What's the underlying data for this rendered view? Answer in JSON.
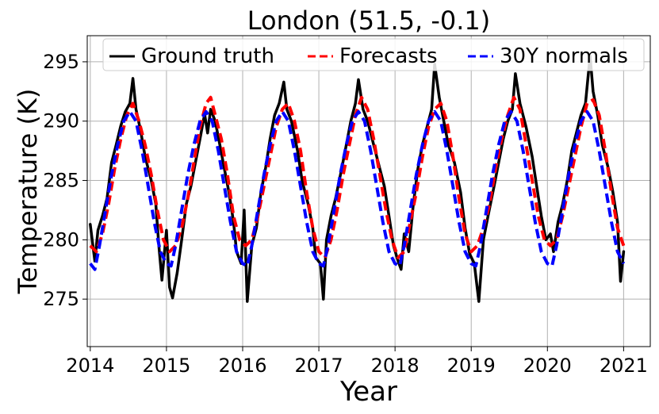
{
  "chart_data": {
    "type": "line",
    "title": "London (51.5, -0.1)",
    "xlabel": "Year",
    "ylabel": "Temperature (K)",
    "xlim": [
      2013.96,
      2021.35
    ],
    "ylim": [
      271.0,
      297.2
    ],
    "xticks": [
      2014,
      2015,
      2016,
      2017,
      2018,
      2019,
      2020,
      2021
    ],
    "yticks": [
      275,
      280,
      285,
      290,
      295
    ],
    "grid": true,
    "legend_position": "top",
    "series": [
      {
        "name": "Ground truth",
        "color": "#000000",
        "style": "solid",
        "x": [
          2014.0,
          2014.06,
          2014.1,
          2014.16,
          2014.22,
          2014.28,
          2014.34,
          2014.4,
          2014.46,
          2014.52,
          2014.56,
          2014.6,
          2014.66,
          2014.72,
          2014.8,
          2014.86,
          2014.9,
          2014.94,
          2015.0,
          2015.04,
          2015.08,
          2015.14,
          2015.2,
          2015.26,
          2015.32,
          2015.38,
          2015.44,
          2015.5,
          2015.54,
          2015.58,
          2015.64,
          2015.7,
          2015.76,
          2015.82,
          2015.88,
          2015.92,
          2015.98,
          2016.02,
          2016.06,
          2016.12,
          2016.18,
          2016.24,
          2016.3,
          2016.36,
          2016.42,
          2016.48,
          2016.54,
          2016.58,
          2016.64,
          2016.72,
          2016.78,
          2016.86,
          2016.92,
          2016.96,
          2017.02,
          2017.06,
          2017.1,
          2017.16,
          2017.22,
          2017.3,
          2017.36,
          2017.42,
          2017.48,
          2017.52,
          2017.58,
          2017.64,
          2017.72,
          2017.8,
          2017.86,
          2017.92,
          2017.98,
          2018.04,
          2018.08,
          2018.12,
          2018.18,
          2018.24,
          2018.3,
          2018.36,
          2018.42,
          2018.48,
          2018.52,
          2018.58,
          2018.64,
          2018.7,
          2018.78,
          2018.86,
          2018.92,
          2018.98,
          2019.04,
          2019.1,
          2019.16,
          2019.22,
          2019.3,
          2019.36,
          2019.42,
          2019.48,
          2019.54,
          2019.58,
          2019.64,
          2019.72,
          2019.8,
          2019.86,
          2019.92,
          2019.98,
          2020.04,
          2020.08,
          2020.14,
          2020.2,
          2020.26,
          2020.32,
          2020.38,
          2020.44,
          2020.5,
          2020.56,
          2020.6,
          2020.66,
          2020.72,
          2020.8,
          2020.86,
          2020.92,
          2020.96,
          2021.0
        ],
        "y": [
          281.3,
          278.2,
          280.8,
          282.0,
          283.5,
          286.5,
          288.0,
          289.6,
          290.8,
          291.5,
          293.6,
          291.0,
          289.2,
          287.0,
          285.0,
          283.0,
          279.5,
          276.6,
          280.8,
          276.0,
          275.1,
          277.2,
          280.0,
          283.0,
          284.5,
          286.5,
          288.5,
          290.6,
          289.0,
          291.0,
          290.0,
          288.0,
          286.0,
          284.0,
          281.5,
          279.0,
          278.0,
          282.5,
          274.8,
          279.5,
          281.0,
          284.0,
          286.0,
          288.5,
          290.5,
          291.5,
          293.3,
          291.0,
          290.0,
          287.5,
          285.0,
          283.0,
          281.0,
          278.5,
          278.0,
          275.0,
          280.0,
          282.0,
          283.5,
          286.0,
          288.0,
          290.0,
          291.5,
          293.5,
          291.0,
          290.0,
          288.0,
          286.0,
          284.5,
          282.0,
          279.5,
          278.2,
          277.5,
          280.5,
          279.0,
          283.0,
          286.0,
          288.0,
          289.5,
          291.0,
          294.8,
          292.0,
          290.0,
          288.0,
          286.5,
          284.0,
          281.0,
          278.8,
          278.0,
          274.8,
          280.0,
          282.0,
          284.5,
          286.5,
          288.5,
          290.0,
          291.0,
          294.0,
          291.5,
          289.5,
          287.0,
          284.5,
          282.0,
          280.0,
          280.5,
          279.0,
          281.5,
          283.0,
          285.0,
          287.5,
          289.0,
          290.5,
          291.5,
          295.5,
          292.5,
          290.5,
          288.0,
          286.0,
          284.0,
          281.5,
          276.5,
          279.0
        ]
      },
      {
        "name": "Forecasts",
        "color": "#ff0000",
        "style": "dashed",
        "x": [
          2014.0,
          2014.08,
          2014.16,
          2014.24,
          2014.32,
          2014.4,
          2014.48,
          2014.56,
          2014.64,
          2014.72,
          2014.8,
          2014.88,
          2014.96,
          2015.04,
          2015.12,
          2015.2,
          2015.28,
          2015.36,
          2015.44,
          2015.52,
          2015.58,
          2015.64,
          2015.72,
          2015.8,
          2015.88,
          2015.96,
          2016.04,
          2016.12,
          2016.2,
          2016.28,
          2016.36,
          2016.44,
          2016.52,
          2016.6,
          2016.68,
          2016.76,
          2016.84,
          2016.92,
          2017.0,
          2017.08,
          2017.16,
          2017.24,
          2017.32,
          2017.4,
          2017.48,
          2017.56,
          2017.64,
          2017.72,
          2017.8,
          2017.88,
          2017.96,
          2018.04,
          2018.12,
          2018.2,
          2018.28,
          2018.36,
          2018.44,
          2018.52,
          2018.6,
          2018.68,
          2018.76,
          2018.84,
          2018.92,
          2019.0,
          2019.08,
          2019.16,
          2019.24,
          2019.32,
          2019.4,
          2019.48,
          2019.56,
          2019.64,
          2019.72,
          2019.8,
          2019.88,
          2019.96,
          2020.04,
          2020.12,
          2020.2,
          2020.28,
          2020.36,
          2020.44,
          2020.52,
          2020.6,
          2020.68,
          2020.76,
          2020.84,
          2020.92,
          2021.0
        ],
        "y": [
          279.5,
          279.0,
          280.5,
          283.0,
          286.0,
          288.5,
          290.5,
          291.5,
          290.0,
          288.0,
          285.5,
          282.5,
          280.0,
          279.0,
          279.5,
          281.0,
          283.5,
          286.5,
          289.5,
          291.5,
          292.0,
          290.5,
          288.5,
          285.5,
          282.0,
          280.0,
          279.5,
          280.0,
          282.0,
          284.5,
          287.0,
          289.5,
          291.0,
          291.5,
          290.0,
          287.5,
          284.0,
          281.0,
          279.0,
          278.5,
          280.0,
          282.5,
          285.5,
          288.0,
          290.5,
          292.0,
          291.0,
          288.5,
          285.5,
          282.5,
          280.0,
          278.5,
          279.0,
          281.5,
          284.0,
          287.0,
          289.5,
          291.0,
          291.5,
          290.0,
          287.0,
          283.5,
          280.5,
          279.0,
          279.5,
          281.0,
          283.0,
          286.0,
          288.5,
          290.5,
          292.0,
          291.0,
          288.0,
          285.0,
          282.0,
          280.0,
          279.5,
          280.0,
          282.0,
          284.5,
          287.0,
          289.5,
          291.5,
          291.8,
          290.5,
          287.5,
          284.0,
          281.0,
          279.5
        ]
      },
      {
        "name": "30Y normals",
        "color": "#0000ff",
        "style": "dashed",
        "x": [
          2014.0,
          2014.06,
          2014.12,
          2014.2,
          2014.28,
          2014.36,
          2014.44,
          2014.52,
          2014.6,
          2014.68,
          2014.76,
          2014.84,
          2014.92,
          2015.0,
          2015.06,
          2015.12,
          2015.2,
          2015.28,
          2015.36,
          2015.44,
          2015.52,
          2015.6,
          2015.68,
          2015.76,
          2015.84,
          2015.92,
          2016.0,
          2016.06,
          2016.12,
          2016.2,
          2016.28,
          2016.36,
          2016.44,
          2016.52,
          2016.6,
          2016.68,
          2016.76,
          2016.84,
          2016.92,
          2017.0,
          2017.06,
          2017.12,
          2017.2,
          2017.28,
          2017.36,
          2017.44,
          2017.52,
          2017.6,
          2017.68,
          2017.76,
          2017.84,
          2017.92,
          2018.0,
          2018.06,
          2018.12,
          2018.2,
          2018.28,
          2018.36,
          2018.44,
          2018.52,
          2018.6,
          2018.68,
          2018.76,
          2018.84,
          2018.92,
          2019.0,
          2019.06,
          2019.12,
          2019.2,
          2019.28,
          2019.36,
          2019.44,
          2019.52,
          2019.6,
          2019.68,
          2019.76,
          2019.84,
          2019.92,
          2020.0,
          2020.06,
          2020.12,
          2020.2,
          2020.28,
          2020.36,
          2020.44,
          2020.52,
          2020.6,
          2020.68,
          2020.76,
          2020.84,
          2020.92,
          2021.0
        ],
        "y": [
          278.0,
          277.5,
          279.5,
          282.5,
          285.5,
          288.0,
          290.0,
          290.8,
          290.0,
          287.5,
          284.5,
          281.5,
          279.0,
          278.0,
          277.8,
          279.5,
          282.5,
          285.5,
          288.0,
          290.0,
          290.8,
          290.0,
          287.5,
          284.5,
          281.5,
          279.0,
          278.0,
          277.8,
          279.5,
          282.5,
          285.5,
          288.0,
          290.0,
          290.8,
          290.0,
          287.5,
          284.5,
          281.5,
          279.0,
          278.0,
          277.8,
          279.5,
          282.5,
          285.5,
          288.0,
          290.0,
          290.8,
          290.0,
          287.5,
          284.5,
          281.5,
          279.0,
          278.0,
          277.8,
          279.5,
          282.5,
          285.5,
          288.0,
          290.0,
          290.8,
          290.0,
          287.5,
          284.5,
          281.5,
          279.0,
          278.0,
          277.8,
          279.5,
          282.5,
          285.5,
          288.0,
          290.0,
          290.8,
          290.0,
          287.5,
          284.5,
          281.5,
          279.0,
          278.0,
          277.8,
          279.5,
          282.5,
          285.5,
          288.0,
          290.0,
          290.8,
          290.0,
          287.5,
          284.5,
          281.5,
          279.0,
          278.0
        ]
      }
    ]
  }
}
